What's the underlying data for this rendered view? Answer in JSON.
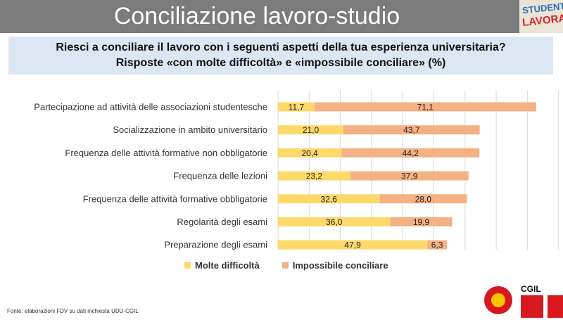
{
  "title": "Conciliazione lavoro-studio",
  "logo_text": {
    "line1": "STUDENTI",
    "line2": "LAVORATORI"
  },
  "subtitle": {
    "line1": "Riesci a conciliare il lavoro con i seguenti aspetti della tua esperienza universitaria?",
    "line2": "Risposte «con molte difficoltà» e «impossibile conciliare» (%)"
  },
  "chart_data": {
    "type": "bar",
    "orientation": "horizontal",
    "stacked": true,
    "categories": [
      "Partecipazione ad attività delle associazioni studentesche",
      "Socializzazione in ambito universitario",
      "Frequenza delle attività formative non obbligatorie",
      "Frequenza delle lezioni",
      "Frequenza delle attività formative obbligatorie",
      "Regolarità degli esami",
      "Preparazione degli esami"
    ],
    "series": [
      {
        "name": "Molte difficoltà",
        "color": "#fdd96a",
        "values": [
          11.7,
          21.0,
          20.4,
          23.2,
          32.6,
          36.0,
          47.9
        ]
      },
      {
        "name": "Impossibile conciliare",
        "color": "#f4b183",
        "values": [
          71.1,
          43.7,
          44.2,
          37.9,
          28.0,
          19.9,
          6.3
        ]
      }
    ],
    "data_labels": [
      [
        "11,7",
        "21,0",
        "20,4",
        "23,2",
        "32,6",
        "36,0",
        "47,9"
      ],
      [
        "71,1",
        "43,7",
        "44,2",
        "37,9",
        "28,0",
        "19,9",
        "6,3"
      ]
    ],
    "xlim": [
      0,
      90
    ],
    "grid": true,
    "legend_position": "bottom"
  },
  "source": "Fonte: elaborazioni FDV su dati inchiesta UDU-CGIL",
  "footer_logo": {
    "text": "CGIL"
  }
}
